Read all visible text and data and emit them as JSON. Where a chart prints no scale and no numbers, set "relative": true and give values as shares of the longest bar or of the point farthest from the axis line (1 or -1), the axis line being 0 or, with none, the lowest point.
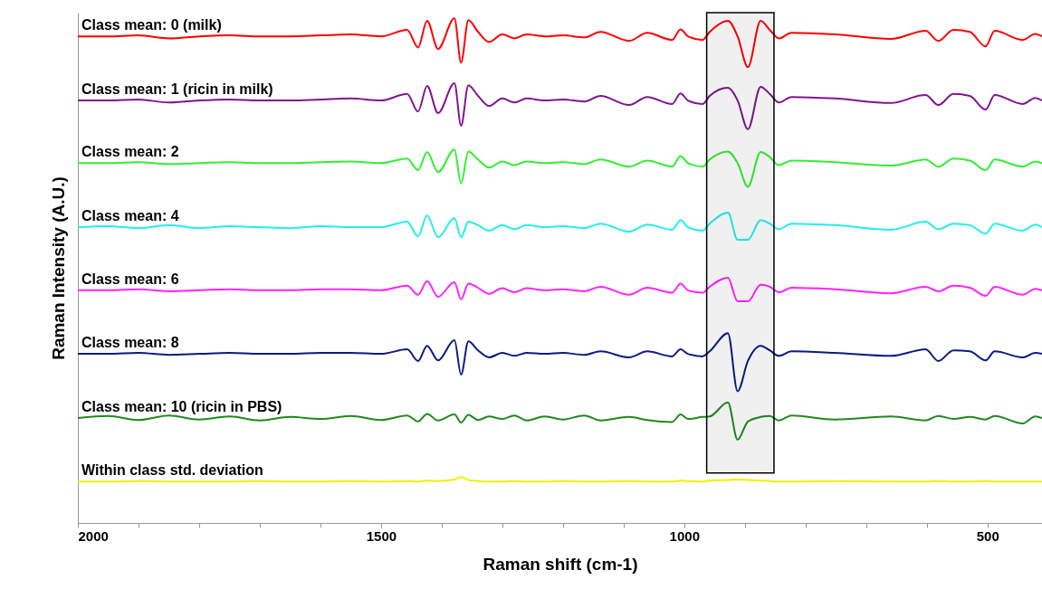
{
  "chart_data": {
    "type": "line",
    "xlabel": "Raman shift (cm-1)",
    "ylabel": "Raman Intensity (A.U.)",
    "relative": true,
    "xlim": [
      2000,
      410
    ],
    "xticks": [
      2000,
      {
        "value": 1900,
        "label": null
      },
      {
        "value": 1800,
        "label": null
      },
      {
        "value": 1700,
        "label": null
      },
      {
        "value": 1600,
        "label": null
      },
      1500,
      {
        "value": 1400,
        "label": null
      },
      {
        "value": 1300,
        "label": null
      },
      {
        "value": 1200,
        "label": null
      },
      {
        "value": 1100,
        "label": null
      },
      1000,
      {
        "value": 900,
        "label": null
      },
      {
        "value": 800,
        "label": null
      },
      {
        "value": 700,
        "label": null
      },
      {
        "value": 600,
        "label": null
      },
      500
    ],
    "bands": [
      {
        "axis": "x",
        "from": 963,
        "to": 852,
        "color": "#000000"
      }
    ],
    "x": [
      2000,
      1950,
      1900,
      1850,
      1800,
      1750,
      1700,
      1650,
      1600,
      1550,
      1500,
      1457,
      1439,
      1424,
      1406,
      1379,
      1368,
      1356,
      1340,
      1322,
      1300,
      1280,
      1260,
      1230,
      1200,
      1165,
      1138,
      1091,
      1061,
      1020,
      1006,
      994,
      970,
      958,
      928,
      912,
      895,
      874,
      859,
      844,
      823,
      752,
      659,
      602,
      581,
      556,
      529,
      503,
      488,
      442,
      421,
      410
    ],
    "series": [
      {
        "name": "Class mean: 0 (milk)",
        "color": "#ff0000",
        "values": [
          0.964,
          0.964,
          0.966,
          0.96,
          0.964,
          0.966,
          0.964,
          0.964,
          0.966,
          0.968,
          0.964,
          0.977,
          0.942,
          0.995,
          0.939,
          1.0,
          0.912,
          0.996,
          0.973,
          0.953,
          0.968,
          0.96,
          0.968,
          0.964,
          0.966,
          0.962,
          0.973,
          0.955,
          0.971,
          0.957,
          0.978,
          0.964,
          0.957,
          0.973,
          0.995,
          0.964,
          0.903,
          0.995,
          0.977,
          0.96,
          0.971,
          0.968,
          0.959,
          0.975,
          0.955,
          0.977,
          0.973,
          0.944,
          0.975,
          0.957,
          0.969,
          0.964
        ]
      },
      {
        "name": "Class mean: 1 (ricin in milk)",
        "color": "#80158f",
        "values": [
          0.837,
          0.837,
          0.839,
          0.833,
          0.837,
          0.839,
          0.837,
          0.837,
          0.839,
          0.841,
          0.837,
          0.85,
          0.815,
          0.866,
          0.812,
          0.871,
          0.787,
          0.867,
          0.846,
          0.826,
          0.841,
          0.833,
          0.841,
          0.837,
          0.839,
          0.835,
          0.846,
          0.828,
          0.844,
          0.83,
          0.851,
          0.837,
          0.83,
          0.846,
          0.862,
          0.837,
          0.78,
          0.864,
          0.85,
          0.833,
          0.844,
          0.841,
          0.832,
          0.848,
          0.828,
          0.85,
          0.846,
          0.819,
          0.848,
          0.83,
          0.842,
          0.837
        ]
      },
      {
        "name": "Class mean: 2",
        "color": "#33ee33",
        "values": [
          0.713,
          0.713,
          0.715,
          0.711,
          0.713,
          0.715,
          0.713,
          0.713,
          0.715,
          0.716,
          0.713,
          0.722,
          0.699,
          0.735,
          0.695,
          0.74,
          0.673,
          0.736,
          0.72,
          0.704,
          0.716,
          0.709,
          0.716,
          0.713,
          0.715,
          0.711,
          0.72,
          0.706,
          0.718,
          0.706,
          0.727,
          0.713,
          0.706,
          0.72,
          0.736,
          0.713,
          0.666,
          0.735,
          0.725,
          0.709,
          0.718,
          0.715,
          0.708,
          0.72,
          0.706,
          0.722,
          0.718,
          0.699,
          0.72,
          0.706,
          0.716,
          0.713
        ]
      },
      {
        "name": "Class mean: 4",
        "color": "#22eeee",
        "values": [
          0.586,
          0.588,
          0.584,
          0.59,
          0.584,
          0.588,
          0.586,
          0.584,
          0.588,
          0.586,
          0.586,
          0.597,
          0.568,
          0.609,
          0.566,
          0.604,
          0.566,
          0.597,
          0.59,
          0.579,
          0.59,
          0.582,
          0.59,
          0.586,
          0.588,
          0.584,
          0.593,
          0.577,
          0.591,
          0.581,
          0.6,
          0.586,
          0.579,
          0.593,
          0.615,
          0.561,
          0.561,
          0.6,
          0.593,
          0.582,
          0.593,
          0.59,
          0.581,
          0.597,
          0.582,
          0.593,
          0.59,
          0.573,
          0.593,
          0.579,
          0.591,
          0.586
        ]
      },
      {
        "name": "Class mean: 6",
        "color": "#ff22ff",
        "values": [
          0.461,
          0.461,
          0.463,
          0.459,
          0.461,
          0.463,
          0.461,
          0.461,
          0.463,
          0.463,
          0.461,
          0.47,
          0.452,
          0.479,
          0.448,
          0.477,
          0.443,
          0.474,
          0.466,
          0.454,
          0.465,
          0.457,
          0.465,
          0.461,
          0.463,
          0.459,
          0.468,
          0.452,
          0.466,
          0.456,
          0.474,
          0.461,
          0.456,
          0.468,
          0.486,
          0.439,
          0.439,
          0.472,
          0.468,
          0.457,
          0.466,
          0.463,
          0.455,
          0.468,
          0.459,
          0.47,
          0.466,
          0.45,
          0.468,
          0.452,
          0.464,
          0.461
        ]
      },
      {
        "name": "Class mean: 8",
        "color": "#0d1a80",
        "values": [
          0.335,
          0.335,
          0.337,
          0.333,
          0.335,
          0.337,
          0.335,
          0.335,
          0.337,
          0.337,
          0.335,
          0.344,
          0.321,
          0.351,
          0.322,
          0.362,
          0.294,
          0.36,
          0.342,
          0.328,
          0.337,
          0.331,
          0.337,
          0.335,
          0.337,
          0.333,
          0.34,
          0.328,
          0.34,
          0.33,
          0.344,
          0.335,
          0.33,
          0.34,
          0.376,
          0.261,
          0.321,
          0.351,
          0.342,
          0.331,
          0.34,
          0.337,
          0.331,
          0.344,
          0.321,
          0.342,
          0.34,
          0.322,
          0.34,
          0.328,
          0.337,
          0.335
        ]
      },
      {
        "name": "Class mean: 10 (ricin in PBS)",
        "color": "#1e8a1e",
        "values": [
          0.208,
          0.212,
          0.204,
          0.213,
          0.205,
          0.211,
          0.203,
          0.21,
          0.206,
          0.212,
          0.204,
          0.213,
          0.201,
          0.216,
          0.203,
          0.215,
          0.199,
          0.214,
          0.204,
          0.211,
          0.206,
          0.213,
          0.203,
          0.211,
          0.205,
          0.213,
          0.203,
          0.21,
          0.204,
          0.2,
          0.215,
          0.206,
          0.21,
          0.211,
          0.239,
          0.165,
          0.201,
          0.21,
          0.212,
          0.203,
          0.213,
          0.205,
          0.211,
          0.203,
          0.212,
          0.206,
          0.21,
          0.205,
          0.212,
          0.197,
          0.211,
          0.208
        ]
      },
      {
        "name": "Within class std. deviation",
        "color": "#f0f000",
        "values": [
          0.082,
          0.082,
          0.083,
          0.082,
          0.082,
          0.082,
          0.083,
          0.082,
          0.082,
          0.083,
          0.082,
          0.083,
          0.082,
          0.084,
          0.083,
          0.086,
          0.091,
          0.085,
          0.083,
          0.082,
          0.082,
          0.083,
          0.082,
          0.082,
          0.083,
          0.082,
          0.082,
          0.083,
          0.082,
          0.082,
          0.084,
          0.083,
          0.082,
          0.084,
          0.085,
          0.086,
          0.085,
          0.084,
          0.083,
          0.082,
          0.082,
          0.083,
          0.082,
          0.082,
          0.083,
          0.082,
          0.082,
          0.083,
          0.082,
          0.082,
          0.082,
          0.082
        ]
      }
    ]
  }
}
